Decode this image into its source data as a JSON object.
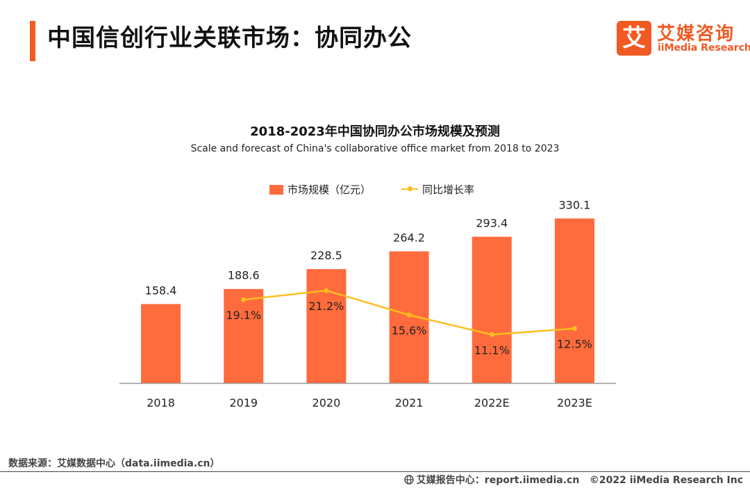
{
  "header": {
    "title": "中国信创行业关联市场：协同办公"
  },
  "logo": {
    "mark": "艾",
    "name_cn": "艾媒咨询",
    "name_en": "iiMedia Research",
    "brand_color": "#f15a22"
  },
  "chart_data": {
    "type": "bar",
    "title": "2018-2023年中国协同办公市场规模及预测",
    "subtitle": "Scale and forecast of China's collaborative office market from 2018 to 2023",
    "categories": [
      "2018",
      "2019",
      "2020",
      "2021",
      "2022E",
      "2023E"
    ],
    "series": [
      {
        "name": "市场规模（亿元）",
        "type": "bar",
        "values": [
          158.4,
          188.6,
          228.5,
          264.2,
          293.4,
          330.1
        ],
        "labels": [
          "158.4",
          "188.6",
          "228.5",
          "264.2",
          "293.4",
          "330.1"
        ],
        "color": "#ff6b3d"
      },
      {
        "name": "同比增长率",
        "type": "line",
        "values": [
          null,
          19.1,
          21.2,
          15.6,
          11.1,
          12.5
        ],
        "labels": [
          "",
          "19.1%",
          "21.2%",
          "15.6%",
          "11.1%",
          "12.5%"
        ],
        "color": "#fcbf1e"
      }
    ],
    "ylim": [
      0,
      350
    ],
    "y2lim": [
      0,
      40
    ],
    "xlabel": "",
    "ylabel": "",
    "grid": false,
    "legend": "top-center"
  },
  "footer": {
    "source": "数据来源：艾媒数据中心（data.iimedia.cn）",
    "report_center": "艾媒报告中心：report.iimedia.cn",
    "copyright": "©2022  iiMedia Research  Inc"
  }
}
